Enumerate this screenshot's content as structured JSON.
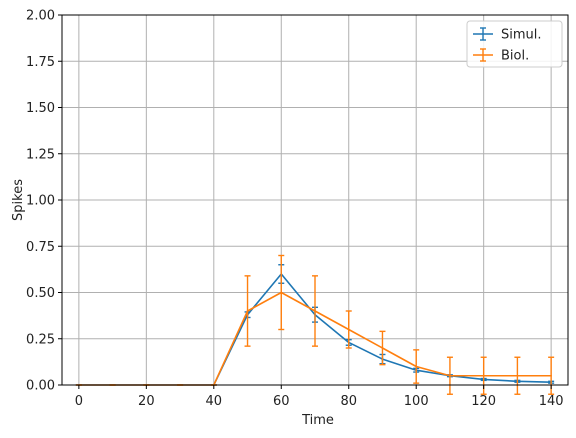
{
  "chart_data": {
    "type": "line",
    "title": "",
    "xlabel": "Time",
    "ylabel": "Spikes",
    "xlim": [
      -5,
      145
    ],
    "ylim": [
      0,
      2.0
    ],
    "xticks": [
      0,
      20,
      40,
      60,
      80,
      100,
      120,
      140
    ],
    "yticks": [
      0.0,
      0.25,
      0.5,
      0.75,
      1.0,
      1.25,
      1.5,
      1.75,
      2.0
    ],
    "xtick_labels": [
      "0",
      "20",
      "40",
      "60",
      "80",
      "100",
      "120",
      "140"
    ],
    "ytick_labels": [
      "0.00",
      "0.25",
      "0.50",
      "0.75",
      "1.00",
      "1.25",
      "1.50",
      "1.75",
      "2.00"
    ],
    "grid": true,
    "legend_position": "top-right",
    "series": [
      {
        "name": "Simul.",
        "color": "#1f77b4",
        "x": [
          0,
          10,
          20,
          30,
          40,
          50,
          60,
          70,
          80,
          90,
          100,
          110,
          120,
          130,
          140
        ],
        "y": [
          0,
          0,
          0,
          0,
          0,
          0.38,
          0.6,
          0.38,
          0.23,
          0.14,
          0.08,
          0.05,
          0.03,
          0.02,
          0.015
        ],
        "err": [
          0,
          0,
          0,
          0,
          0,
          0.015,
          0.05,
          0.04,
          0.015,
          0.025,
          0.01,
          0.005,
          0.005,
          0.005,
          0.005
        ]
      },
      {
        "name": "Biol.",
        "color": "#ff7f0e",
        "x": [
          0,
          10,
          20,
          30,
          40,
          50,
          60,
          70,
          80,
          90,
          100,
          110,
          120,
          130,
          140
        ],
        "y": [
          0,
          0,
          0,
          0,
          0,
          0.4,
          0.5,
          0.4,
          0.3,
          0.2,
          0.1,
          0.05,
          0.05,
          0.05,
          0.05
        ],
        "err": [
          0,
          0,
          0,
          0,
          0,
          0.19,
          0.2,
          0.19,
          0.1,
          0.09,
          0.09,
          0.1,
          0.1,
          0.1,
          0.1
        ]
      }
    ]
  }
}
